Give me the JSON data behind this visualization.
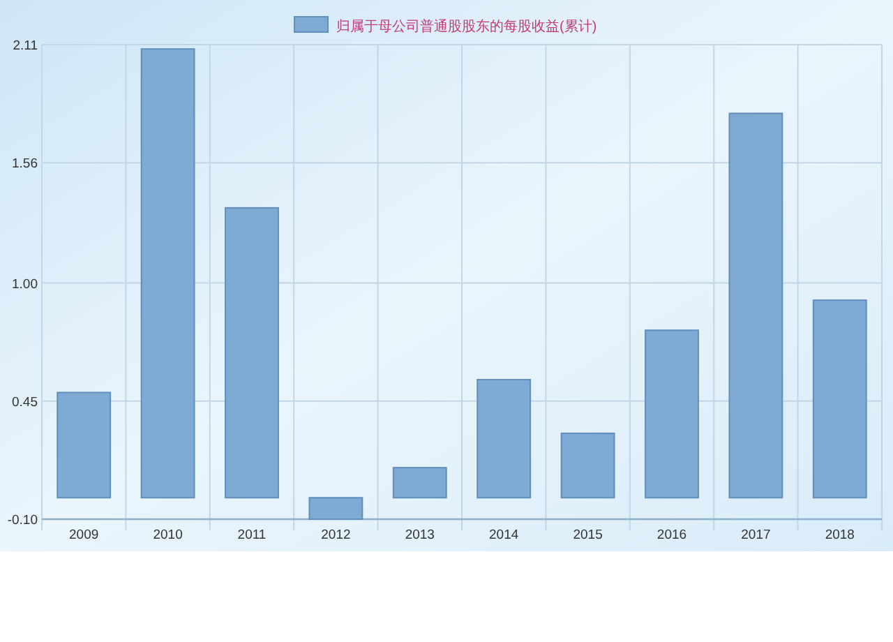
{
  "chart_data": {
    "type": "bar",
    "categories": [
      "2009",
      "2010",
      "2011",
      "2012",
      "2013",
      "2014",
      "2015",
      "2016",
      "2017",
      "2018"
    ],
    "series": [
      {
        "name": "归属于母公司普通股股东的每股收益(累计)",
        "color": "#7eaad3",
        "values": [
          0.49,
          2.09,
          1.35,
          -0.1,
          0.14,
          0.55,
          0.3,
          0.78,
          1.79,
          0.92
        ]
      }
    ],
    "ylim": [
      -0.1,
      2.11
    ],
    "yticks": [
      {
        "value": -0.1,
        "label": "-0.10"
      },
      0.45,
      {
        "value": 1,
        "label": "1.00"
      },
      1.56,
      2.11
    ],
    "grid": true,
    "legend": "top"
  }
}
